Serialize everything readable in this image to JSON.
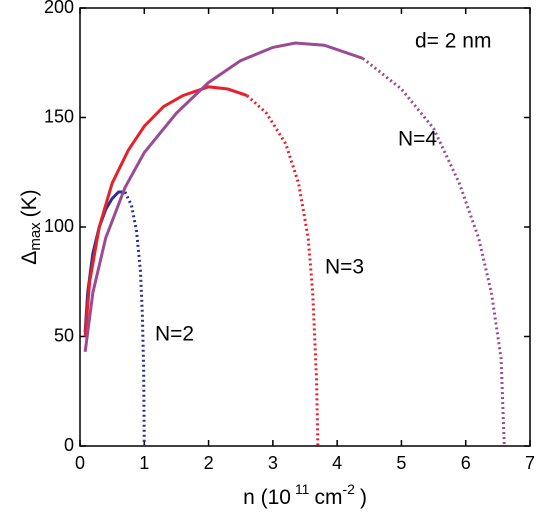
{
  "chart_data": {
    "type": "line",
    "annotation": "d= 2 nm",
    "y_label": {
      "symbol": "Δ",
      "sub": "max",
      "unit": "(K)"
    },
    "x_label": {
      "text1": "n (10",
      "sup1": "11",
      "text2": "cm",
      "sup2": "-2",
      "text3": ")"
    },
    "xlim": [
      0,
      7
    ],
    "xticks": [
      0,
      1,
      2,
      3,
      4,
      5,
      6,
      7
    ],
    "ylim": [
      0,
      200
    ],
    "yticks": [
      0,
      50,
      100,
      150,
      200
    ],
    "series": [
      {
        "name": "N=2",
        "color": "#2e3192",
        "segments": [
          {
            "style": "solid",
            "x": [
              0.08,
              0.12,
              0.2,
              0.3,
              0.4,
              0.5,
              0.6,
              0.7
            ],
            "values": [
              52,
              70,
              88,
              100,
              108,
              113,
              116,
              116
            ]
          },
          {
            "style": "dotted",
            "x": [
              0.7,
              0.8,
              0.88,
              0.94,
              0.97,
              0.99,
              1.0
            ],
            "values": [
              116,
              110,
              98,
              80,
              60,
              35,
              0
            ]
          }
        ]
      },
      {
        "name": "N=3",
        "color": "#e8202a",
        "segments": [
          {
            "style": "solid",
            "x": [
              0.08,
              0.15,
              0.3,
              0.5,
              0.75,
              1.0,
              1.3,
              1.6,
              2.0,
              2.3,
              2.6
            ],
            "values": [
              50,
              75,
              100,
              120,
              135,
              146,
              155,
              160,
              164,
              163,
              160
            ]
          },
          {
            "style": "dotted",
            "x": [
              2.6,
              2.9,
              3.2,
              3.4,
              3.55,
              3.62,
              3.68,
              3.7
            ],
            "values": [
              160,
              152,
              138,
              120,
              95,
              70,
              30,
              0
            ]
          }
        ]
      },
      {
        "name": "N=4",
        "color": "#9b4a94",
        "segments": [
          {
            "style": "solid",
            "x": [
              0.08,
              0.2,
              0.4,
              0.7,
              1.0,
              1.5,
              2.0,
              2.5,
              3.0,
              3.35,
              3.8,
              4.4
            ],
            "values": [
              43,
              70,
              95,
              118,
              134,
              152,
              166,
              176,
              182,
              184,
              183,
              177
            ]
          },
          {
            "style": "dotted",
            "x": [
              4.4,
              5.0,
              5.5,
              5.9,
              6.2,
              6.4,
              6.55,
              6.6
            ],
            "values": [
              177,
              163,
              145,
              120,
              95,
              70,
              40,
              0
            ]
          }
        ]
      }
    ]
  }
}
